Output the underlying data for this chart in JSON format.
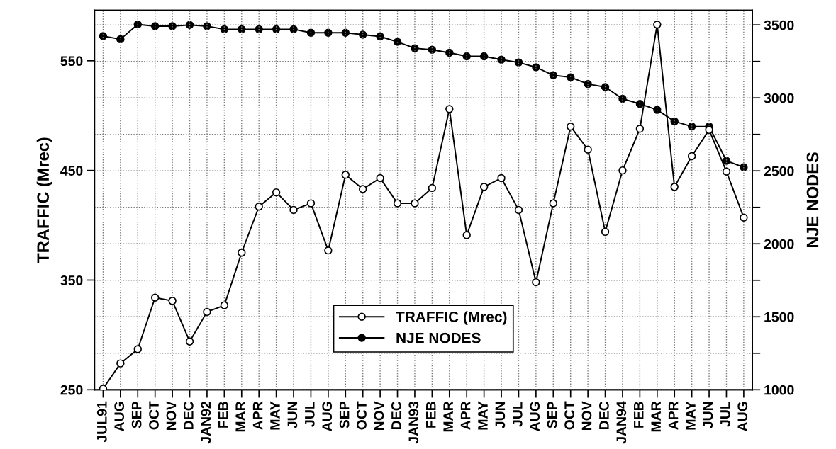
{
  "chart_data": {
    "type": "line",
    "categories": [
      "JUL91",
      "AUG",
      "SEP",
      "OCT",
      "NOV",
      "DEC",
      "JAN92",
      "FEB",
      "MAR",
      "APR",
      "MAY",
      "JUN",
      "JUL",
      "AUG",
      "SEP",
      "OCT",
      "NOV",
      "DEC",
      "JAN93",
      "FEB",
      "MAR",
      "APR",
      "MAY",
      "JUN",
      "JUL",
      "AUG",
      "SEP",
      "OCT",
      "NOV",
      "DEC",
      "JAN94",
      "FEB",
      "MAR",
      "APR",
      "MAY",
      "JUN",
      "JUL",
      "AUG"
    ],
    "series": [
      {
        "name": "TRAFFIC (Mrec)",
        "color": "#000000",
        "values": [
          251,
          274,
          287,
          334,
          331,
          294,
          321,
          327,
          375,
          417,
          430,
          414,
          420,
          377,
          446,
          433,
          443,
          420,
          420,
          434,
          506,
          391,
          435,
          443,
          414,
          348,
          420,
          490,
          469,
          394,
          450,
          488,
          583,
          435,
          463,
          487,
          449,
          407
        ]
      },
      {
        "name": "NJE NODES",
        "color": "#000000",
        "axis": "y2",
        "values": [
          3423,
          3402,
          3503,
          3491,
          3491,
          3500,
          3491,
          3470,
          3470,
          3470,
          3470,
          3470,
          3446,
          3446,
          3446,
          3433,
          3421,
          3384,
          3340,
          3330,
          3309,
          3285,
          3285,
          3262,
          3243,
          3210,
          3155,
          3141,
          3095,
          3074,
          2994,
          2959,
          2918,
          2839,
          2804,
          2804,
          2569,
          2524
        ]
      }
    ],
    "ylabel": "TRAFFIC (Mrec)",
    "y2label": "NJE NODES",
    "ylim": [
      250,
      596
    ],
    "yticks": [
      250,
      350,
      450,
      550
    ],
    "y2lim": [
      1000,
      3600
    ],
    "y2ticks": [
      1000,
      {
        "value": 1250,
        "label": null
      },
      1500,
      {
        "value": 1750,
        "label": null
      },
      2000,
      {
        "value": 2250,
        "label": null
      },
      2500,
      {
        "value": 2750,
        "label": null
      },
      3000,
      {
        "value": 3250,
        "label": null
      },
      3500
    ],
    "grid": true,
    "legend": "bottom",
    "marker": "circle",
    "line_style": "solid"
  }
}
